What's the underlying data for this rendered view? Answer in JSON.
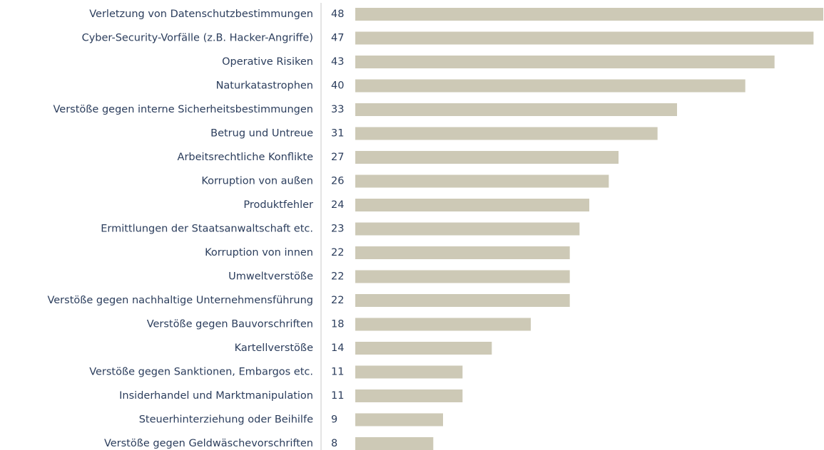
{
  "chart_data": {
    "type": "bar",
    "orientation": "horizontal",
    "categories": [
      "Verletzung von Datenschutzbestimmungen",
      "Cyber-Security-Vorfälle (z.B. Hacker-Angriffe)",
      "Operative Risiken",
      "Naturkatastrophen",
      "Verstöße gegen interne Sicherheitsbestimmungen",
      "Betrug und Untreue",
      "Arbeitsrechtliche Konflikte",
      "Korruption von außen",
      "Produktfehler",
      "Ermittlungen der Staatsanwaltschaft etc.",
      "Korruption von innen",
      "Umweltverstöße",
      "Verstöße gegen nachhaltige Unternehmensführung",
      "Verstöße gegen Bauvorschriften",
      "Kartellverstöße",
      "Verstöße gegen Sanktionen, Embargos etc.",
      "Insiderhandel und Marktmanipulation",
      "Steuerhinterziehung oder Beihilfe",
      "Verstöße gegen Geldwäschevorschriften"
    ],
    "values": [
      48,
      47,
      43,
      40,
      33,
      31,
      27,
      26,
      24,
      23,
      22,
      22,
      22,
      18,
      14,
      11,
      11,
      9,
      8
    ],
    "color": "#cdc9b6"
  }
}
